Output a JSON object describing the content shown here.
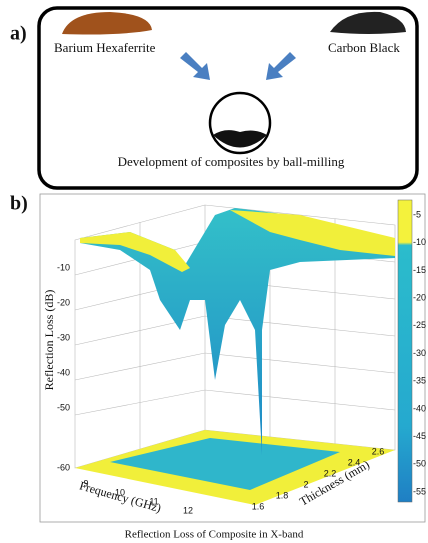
{
  "panel_a": {
    "label": "a)",
    "left_material": "Barium Hexaferrite",
    "right_material": "Carbon Black",
    "process": "Development of composites by ball-milling"
  },
  "panel_b": {
    "label": "b)",
    "z_axis_label": "Reflection Loss (dB)",
    "z_ticks": [
      "-10",
      "-20",
      "-30",
      "-40",
      "-50",
      "-60"
    ],
    "x_axis_label": "Frequency (GHz)",
    "x_ticks": [
      "9",
      "10",
      "11",
      "12"
    ],
    "y_axis_label": "Thickness (mm)",
    "y_ticks": [
      "1.6",
      "1.8",
      "2",
      "2.2",
      "2.4",
      "2.6"
    ],
    "colorbar_ticks": [
      "-5",
      "-10",
      "-15",
      "-20",
      "-25",
      "-30",
      "-35",
      "-40",
      "-45",
      "-50",
      "-55"
    ],
    "caption": "Reflection Loss of Composite  in X-band"
  }
}
